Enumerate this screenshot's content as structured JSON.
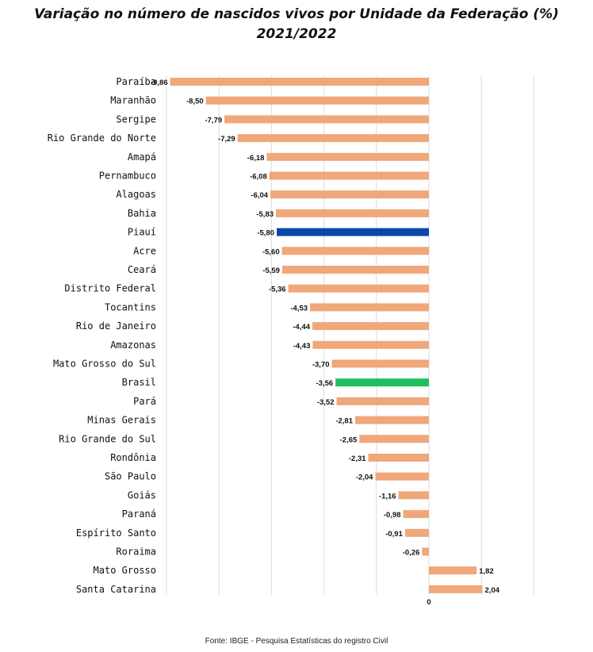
{
  "title_line1": "Variação no número de nascidos vivos por Unidade da Federação (%)",
  "title_line2": "2021/2022",
  "source": "Fonte: IBGE - Pesquisa Estatísticas do registro Civil",
  "colors": {
    "default_bar": "#f0a77a",
    "highlight_piaui": "#0a47a9",
    "highlight_brasil": "#1fbf5f",
    "grid": "#dddddd"
  },
  "chart_data": {
    "type": "bar",
    "orientation": "horizontal",
    "title": "Variação no número de nascidos vivos por Unidade da Federação (%) 2021/2022",
    "categories": [
      "Paraíba",
      "Maranhão",
      "Sergipe",
      "Rio Grande do Norte",
      "Amapá",
      "Pernambuco",
      "Alagoas",
      "Bahia",
      "Piauí",
      "Acre",
      "Ceará",
      "Distrito Federal",
      "Tocantins",
      "Rio de Janeiro",
      "Amazonas",
      "Mato Grosso do Sul",
      "Brasil",
      "Pará",
      "Minas Gerais",
      "Rio Grande do Sul",
      "Rondônia",
      "São Paulo",
      "Goiás",
      "Paraná",
      "Espírito Santo",
      "Roraima",
      "Mato Grosso",
      "Santa Catarina"
    ],
    "values": [
      -9.86,
      -8.5,
      -7.79,
      -7.29,
      -6.18,
      -6.08,
      -6.04,
      -5.83,
      -5.8,
      -5.6,
      -5.59,
      -5.36,
      -4.53,
      -4.44,
      -4.43,
      -3.7,
      -3.56,
      -3.52,
      -2.81,
      -2.65,
      -2.31,
      -2.04,
      -1.16,
      -0.98,
      -0.91,
      -0.26,
      1.82,
      2.04
    ],
    "value_labels": [
      "-9,86",
      "-8,50",
      "-7,79",
      "-7,29",
      "-6,18",
      "-6,08",
      "-6,04",
      "-5,83",
      "-5,80",
      "-5,60",
      "-5,59",
      "-5,36",
      "-4,53",
      "-4,44",
      "-4,43",
      "-3,70",
      "-3,56",
      "-3,52",
      "-2,81",
      "-2,65",
      "-2,31",
      "-2,04",
      "-1,16",
      "-0,98",
      "-0,91",
      "-0,26",
      "1,82",
      "2,04"
    ],
    "highlights": {
      "Piauí": "highlight_piaui",
      "Brasil": "highlight_brasil"
    },
    "x_tick_labels": [
      "0"
    ],
    "grid": true,
    "xlim": [
      -10,
      4
    ]
  }
}
